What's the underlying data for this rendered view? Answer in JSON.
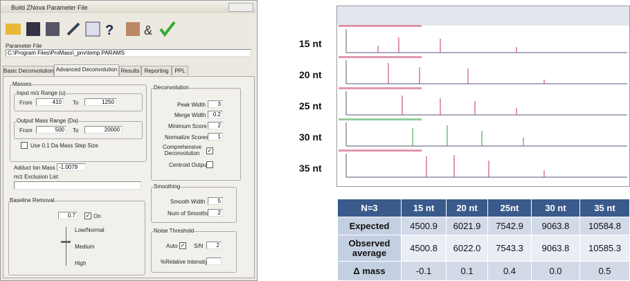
{
  "dialog": {
    "title": "Build ZNova Parameter File",
    "parameter_file_label": "Parameter File",
    "parameter_file_path": "C:\\Program Files\\ProMass\\_pnv\\temp.PARAMS",
    "tabs": [
      "Basic Deconvolution",
      "Advanced Deconvolution",
      "Results",
      "Reporting",
      "PPL"
    ],
    "masses": {
      "title": "Masses",
      "input_range_label": "Input m/z Range (u)",
      "from_label": "From",
      "input_from": "410",
      "to_label": "To",
      "input_to": "1250",
      "output_range_label": "Output Mass Range (Da)",
      "output_from_label": "From",
      "output_from": "500",
      "output_to_label": "To",
      "output_to": "20000",
      "step_size_label": "Use 0.1 Da Mass Step Size",
      "adduct_label": "Adduct Ion Mass",
      "adduct_value": "-1.0079",
      "exclusion_label": "m/z Exclusion List"
    },
    "deconvolution": {
      "title": "Deconvolution",
      "peak_width_label": "Peak Width",
      "peak_width": "3",
      "merge_width_label": "Merge Width",
      "merge_width": "0.2",
      "min_score_label": "Minimum Score",
      "min_score": "2",
      "normalize_label": "Normalize Scores",
      "normalize": "1",
      "comprehensive_label": "Comprehensive Deconvolution",
      "centroid_label": "Centroid Output"
    },
    "smoothing": {
      "title": "Smoothing",
      "width_label": "Smooth Width",
      "width": "5",
      "num_label": "Num of Smooths",
      "num": "2"
    },
    "baseline": {
      "title": "Baseline Removal",
      "value": "0.7",
      "on_label": "On",
      "levels": [
        "Low/Normal",
        "Medium",
        "High"
      ]
    },
    "noise": {
      "title": "Noise Threshold",
      "auto_label": "Auto",
      "sn_label": "S/N",
      "sn": "2",
      "relative_label": "%Relative Intensity"
    }
  },
  "spectra_labels": [
    "15 nt",
    "20 nt",
    "25 nt",
    "30 nt",
    "35 nt"
  ],
  "table": {
    "header": [
      "N=3",
      "15 nt",
      "20 nt",
      "25nt",
      "30 nt",
      "35 nt"
    ],
    "rows": [
      [
        "Expected",
        "4500.9",
        "6021.9",
        "7542.9",
        "9063.8",
        "10584.8"
      ],
      [
        "Observed average",
        "4500.8",
        "6022.0",
        "7543.3",
        "9063.8",
        "10585.3"
      ],
      [
        "Δ mass",
        "-0.1",
        "0.1",
        "0.4",
        "0.0",
        "0.5"
      ]
    ]
  }
}
